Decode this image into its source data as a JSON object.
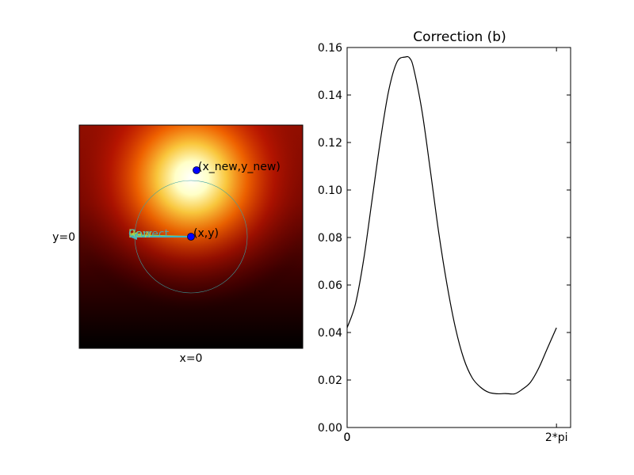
{
  "chart_data": [
    {
      "type": "heatmap",
      "title": "",
      "xlabel": "x=0",
      "ylabel": "y=0",
      "colormap": "hot",
      "colors": {
        "point": "#0000ff",
        "circle": "#3aa0a0",
        "raw_arrow": "#8fd14f",
        "correct_arrow": "#3fb3c4"
      },
      "annotations": {
        "point_original": "(x,y)",
        "point_new": "(x_new,y_new)",
        "arrow_raw": "Raw",
        "arrow_correct": "Correct"
      }
    },
    {
      "type": "line",
      "title": "Correction (b)",
      "xlabel": "",
      "ylabel": "",
      "xlim": [
        0,
        6.707
      ],
      "ylim": [
        0,
        0.16
      ],
      "x_ticks": [
        "0",
        "0",
        "2*pi"
      ],
      "y_ticks": [
        "0.00",
        "0.02",
        "0.04",
        "0.06",
        "0.08",
        "0.10",
        "0.12",
        "0.14",
        "0.16"
      ],
      "grid": false,
      "series": [
        {
          "x": [
            0.0,
            0.25,
            0.5,
            0.75,
            1.0,
            1.25,
            1.5,
            1.75,
            1.88,
            2.0,
            2.25,
            2.5,
            2.75,
            3.0,
            3.25,
            3.5,
            3.75,
            4.0,
            4.25,
            4.5,
            4.75,
            5.03,
            5.25,
            5.5,
            5.75,
            6.0,
            6.283
          ],
          "y": [
            0.042,
            0.052,
            0.071,
            0.096,
            0.121,
            0.142,
            0.154,
            0.156,
            0.1555,
            0.151,
            0.133,
            0.108,
            0.082,
            0.06,
            0.042,
            0.029,
            0.021,
            0.017,
            0.0148,
            0.0142,
            0.0143,
            0.0142,
            0.016,
            0.019,
            0.025,
            0.033,
            0.042
          ]
        }
      ]
    }
  ]
}
